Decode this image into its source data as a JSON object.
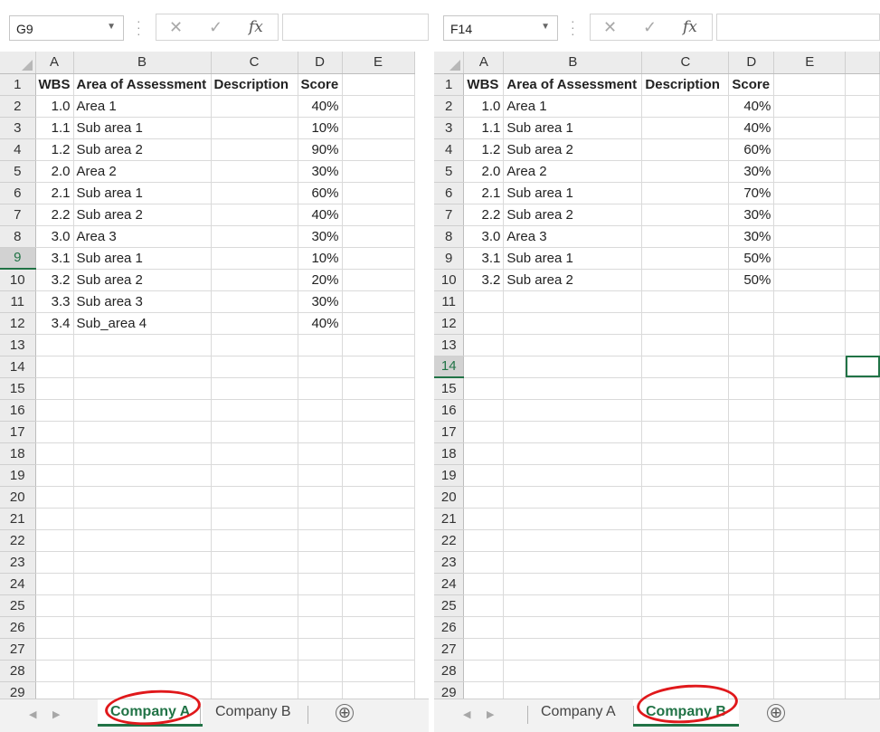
{
  "columns": [
    "A",
    "B",
    "C",
    "D",
    "E"
  ],
  "header_row": [
    "WBS",
    "Area of Assessment",
    "Description",
    "Score"
  ],
  "row_numbers": [
    "1",
    "2",
    "3",
    "4",
    "5",
    "6",
    "7",
    "8",
    "9",
    "10",
    "11",
    "12",
    "13",
    "14",
    "15",
    "16",
    "17",
    "18",
    "19",
    "20",
    "21",
    "22",
    "23",
    "24",
    "25",
    "26",
    "27",
    "28",
    "29"
  ],
  "sheet_nav": {
    "prev": "◀",
    "next": "▶"
  },
  "add_sheet": "⊕",
  "accent_color": "#217346",
  "annotation_color": "#e0181b",
  "left_window": {
    "name_box": "G9",
    "active_row": "9",
    "rows": [
      [
        "1.0",
        "Area 1",
        "",
        "40%"
      ],
      [
        "1.1",
        "Sub area 1",
        "",
        "10%"
      ],
      [
        "1.2",
        "Sub area 2",
        "",
        "90%"
      ],
      [
        "2.0",
        "Area 2",
        "",
        "30%"
      ],
      [
        "2.1",
        "Sub area 1",
        "",
        "60%"
      ],
      [
        "2.2",
        "Sub area 2",
        "",
        "40%"
      ],
      [
        "3.0",
        "Area 3",
        "",
        "30%"
      ],
      [
        "3.1",
        "Sub area 1",
        "",
        "10%"
      ],
      [
        "3.2",
        "Sub area 2",
        "",
        "20%"
      ],
      [
        "3.3",
        "Sub area 3",
        "",
        "30%"
      ],
      [
        "3.4",
        "Sub_area 4",
        "",
        "40%"
      ]
    ],
    "tabs": [
      {
        "label": "Company A",
        "active": true
      },
      {
        "label": "Company B",
        "active": false
      }
    ]
  },
  "right_window": {
    "name_box": "F14",
    "active_row": "14",
    "rows": [
      [
        "1.0",
        "Area 1",
        "",
        "40%"
      ],
      [
        "1.1",
        "Sub area 1",
        "",
        "40%"
      ],
      [
        "1.2",
        "Sub area 2",
        "",
        "60%"
      ],
      [
        "2.0",
        "Area 2",
        "",
        "30%"
      ],
      [
        "2.1",
        "Sub area 1",
        "",
        "70%"
      ],
      [
        "2.2",
        "Sub area 2",
        "",
        "30%"
      ],
      [
        "3.0",
        "Area 3",
        "",
        "30%"
      ],
      [
        "3.1",
        "Sub area 1",
        "",
        "50%"
      ],
      [
        "3.2",
        "Sub area 2",
        "",
        "50%"
      ]
    ],
    "tabs": [
      {
        "label": "Company A",
        "active": false
      },
      {
        "label": "Company B",
        "active": true
      }
    ]
  }
}
